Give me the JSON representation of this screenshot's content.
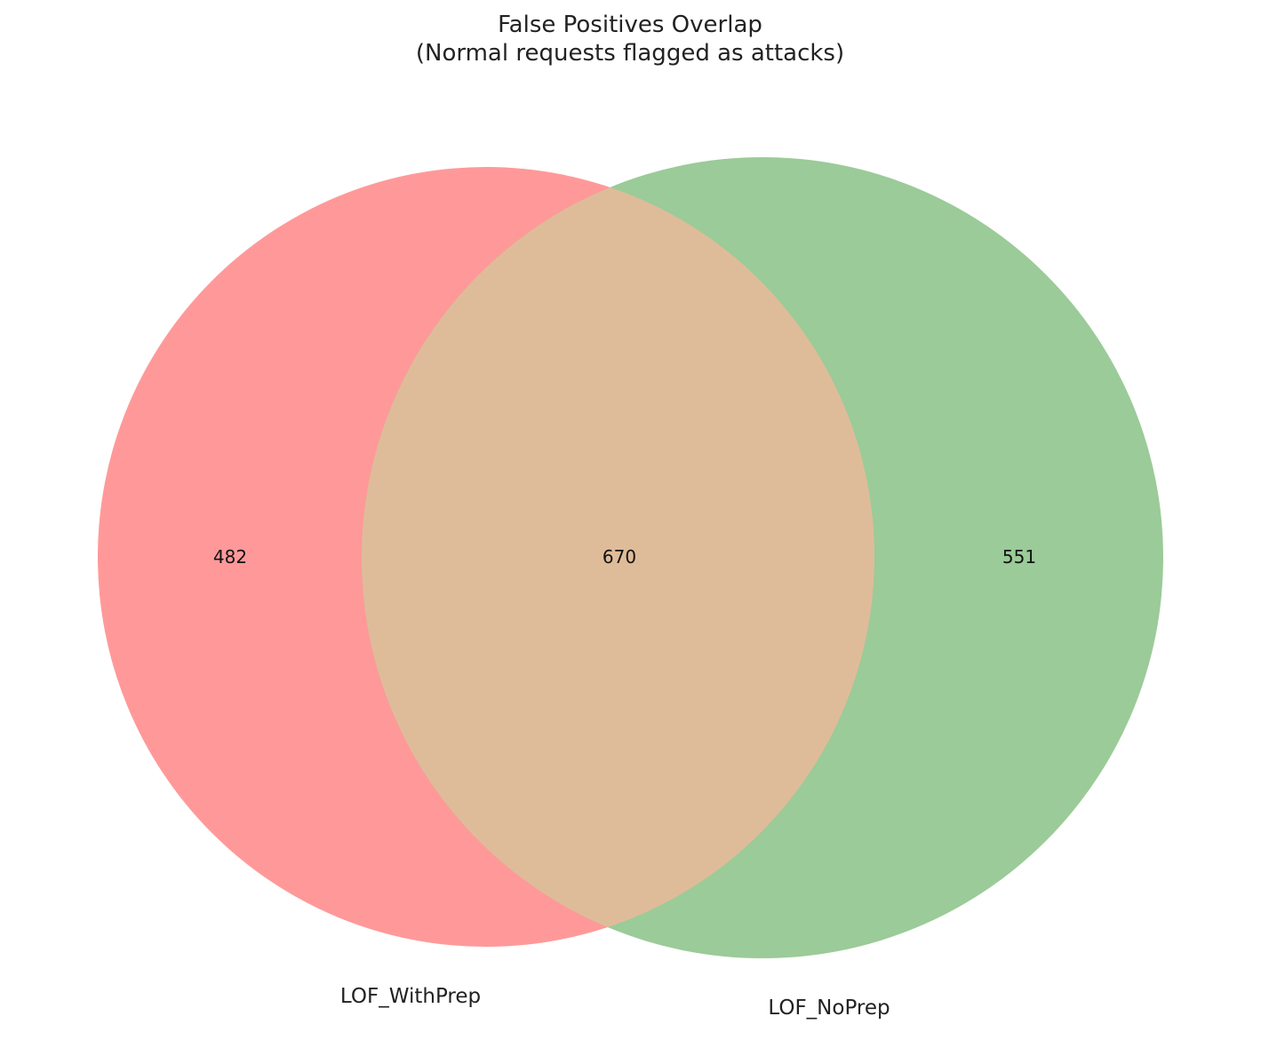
{
  "title_line1": "False Positives Overlap",
  "title_line2": "(Normal requests flagged as attacks)",
  "sets": [
    {
      "label": "LOF_WithPrep",
      "only_count": "482",
      "color": "#ff9999"
    },
    {
      "label": "LOF_NoPrep",
      "only_count": "551",
      "color": "#9bcb98"
    }
  ],
  "intersection_count": "670",
  "intersection_color": "#dfbc99"
}
